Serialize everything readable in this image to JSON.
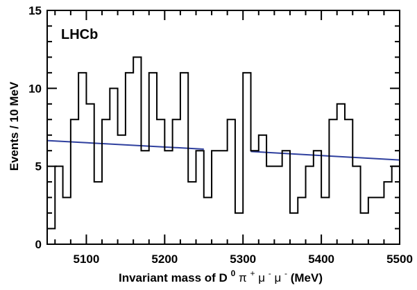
{
  "chart_data": {
    "type": "histogram",
    "experiment_label": "LHCb",
    "xlabel": {
      "prefix": "Invariant mass of ",
      "particle": "D",
      "particle_superscript": "0",
      "decay_products": " π",
      "pi_charge": "+",
      "mu1": " μ",
      "mu1_charge": "-",
      "mu2": " μ",
      "mu2_charge": "-",
      "suffix": " (MeV)"
    },
    "ylabel": "Events / 10 MeV",
    "xlim": [
      5050,
      5500
    ],
    "ylim": [
      0,
      15
    ],
    "x_ticks": [
      5100,
      5200,
      5300,
      5400,
      5500
    ],
    "y_ticks": [
      0,
      5,
      10,
      15
    ],
    "bin_width": 10,
    "bin_low_edges": [
      5050,
      5060,
      5070,
      5080,
      5090,
      5100,
      5110,
      5120,
      5130,
      5140,
      5150,
      5160,
      5170,
      5180,
      5190,
      5200,
      5210,
      5220,
      5230,
      5240,
      5250,
      5260,
      5270,
      5280,
      5290,
      5300,
      5310,
      5320,
      5330,
      5340,
      5350,
      5360,
      5370,
      5380,
      5390,
      5400,
      5410,
      5420,
      5430,
      5440,
      5450,
      5460,
      5470,
      5480,
      5490
    ],
    "counts": [
      1,
      5,
      3,
      8,
      11,
      9,
      4,
      8,
      10,
      7,
      11,
      12,
      6,
      11,
      8,
      6,
      8,
      11,
      4,
      6,
      3,
      6,
      6,
      8,
      2,
      11,
      6,
      7,
      5,
      5,
      6,
      2,
      3,
      5,
      6,
      3,
      8,
      9,
      8,
      5,
      2,
      3,
      3,
      4,
      5
    ],
    "fit_segments": [
      {
        "x": [
          5050,
          5250
        ],
        "y": [
          6.65,
          6.1
        ]
      },
      {
        "x": [
          5310,
          5500
        ],
        "y": [
          5.95,
          5.4
        ]
      }
    ],
    "colors": {
      "histogram": "#000000",
      "fit": "#2e3f9e"
    }
  }
}
